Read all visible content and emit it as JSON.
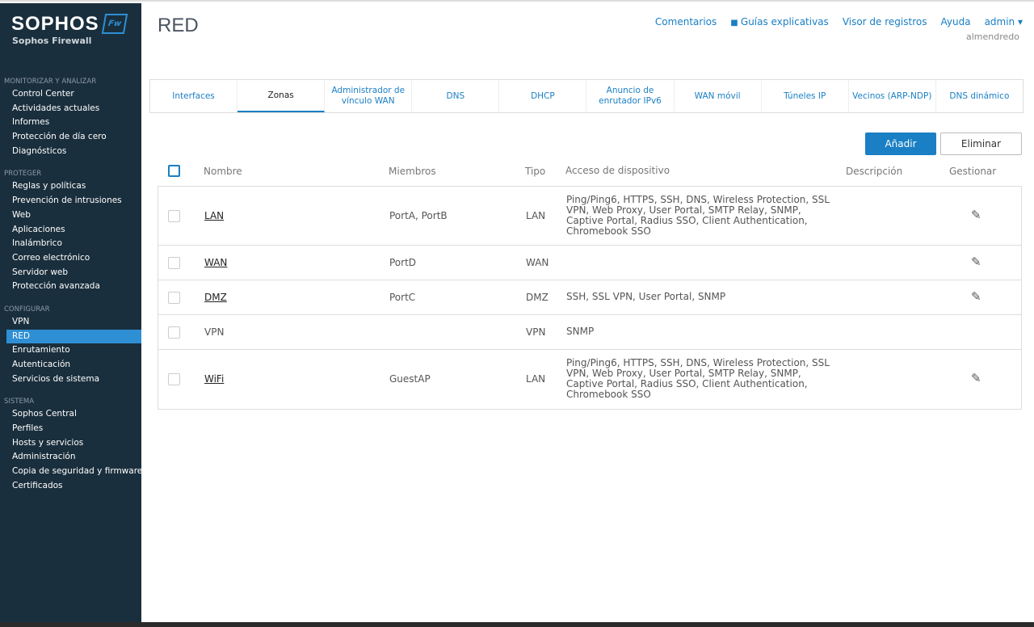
{
  "sidebar": {
    "logo": "SOPHOS",
    "badge": "Fw",
    "product": "Sophos Firewall",
    "sections": [
      {
        "title": "MONITORIZAR Y ANALIZAR",
        "items": [
          "Control Center",
          "Actividades actuales",
          "Informes",
          "Protección de día cero",
          "Diagnósticos"
        ]
      },
      {
        "title": "PROTEGER",
        "items": [
          "Reglas y políticas",
          "Prevención de intrusiones",
          "Web",
          "Aplicaciones",
          "Inalámbrico",
          "Correo electrónico",
          "Servidor web",
          "Protección avanzada"
        ]
      },
      {
        "title": "CONFIGURAR",
        "items": [
          "VPN",
          "RED",
          "Enrutamiento",
          "Autenticación",
          "Servicios de sistema"
        ]
      },
      {
        "title": "SISTEMA",
        "items": [
          "Sophos Central",
          "Perfiles",
          "Hosts y servicios",
          "Administración",
          "Copia de seguridad y firmware",
          "Certificados"
        ]
      }
    ],
    "active": "RED"
  },
  "header": {
    "title": "RED",
    "links": [
      "Comentarios",
      "Guías explicativas",
      "Visor de registros",
      "Ayuda",
      "admin ▾"
    ],
    "user": "almendredo"
  },
  "tabs": [
    "Interfaces",
    "Zonas",
    "Administrador de vínculo WAN",
    "DNS",
    "DHCP",
    "Anuncio de enrutador IPv6",
    "WAN móvil",
    "Túneles IP",
    "Vecinos (ARP-NDP)",
    "DNS dinámico"
  ],
  "active_tab": "Zonas",
  "buttons": {
    "add": "Añadir",
    "delete": "Eliminar"
  },
  "table": {
    "headers": [
      "Nombre",
      "Miembros",
      "Tipo",
      "Acceso de dispositivo",
      "Descripción",
      "Gestionar"
    ],
    "rows": [
      {
        "name": "LAN",
        "link": true,
        "members": "PortA, PortB",
        "type": "LAN",
        "access": "Ping/Ping6, HTTPS, SSH, DNS, Wireless Protection, SSL VPN, Web Proxy, User Portal, SMTP Relay, SNMP, Captive Portal, Radius SSO, Client Authentication, Chromebook SSO",
        "description": "",
        "editable": true
      },
      {
        "name": "WAN",
        "link": true,
        "members": "PortD",
        "type": "WAN",
        "access": "",
        "description": "",
        "editable": true
      },
      {
        "name": "DMZ",
        "link": true,
        "members": "PortC",
        "type": "DMZ",
        "access": "SSH, SSL VPN, User Portal, SNMP",
        "description": "",
        "editable": true
      },
      {
        "name": "VPN",
        "link": false,
        "members": "",
        "type": "VPN",
        "access": "SNMP",
        "description": "",
        "editable": false
      },
      {
        "name": "WiFi",
        "link": true,
        "members": "GuestAP",
        "type": "LAN",
        "access": "Ping/Ping6, HTTPS, SSH, DNS, Wireless Protection, SSL VPN, Web Proxy, User Portal, SMTP Relay, SNMP, Captive Portal, Radius SSO, Client Authentication, Chromebook SSO",
        "description": "",
        "editable": true
      }
    ]
  }
}
